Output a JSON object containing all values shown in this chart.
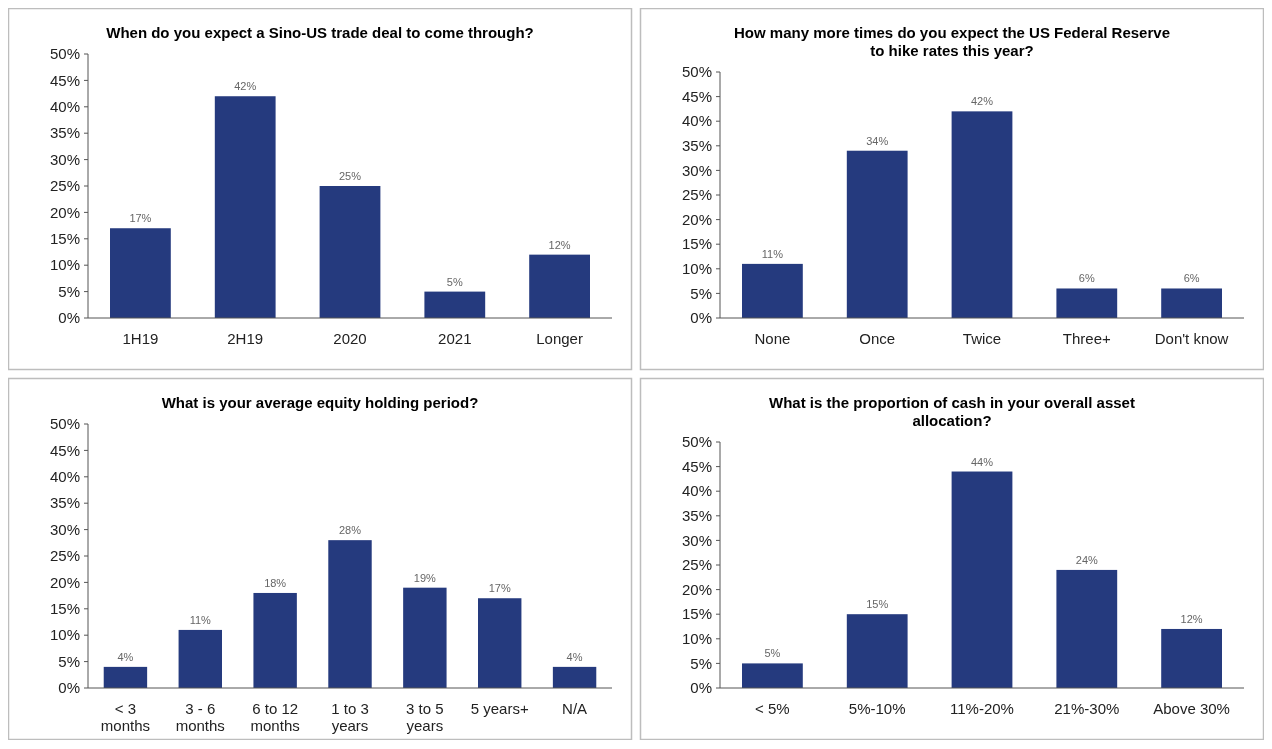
{
  "chart_data": [
    {
      "type": "bar",
      "title": "When do you expect a Sino-US trade deal to come through?",
      "categories": [
        "1H19",
        "2H19",
        "2020",
        "2021",
        "Longer"
      ],
      "values": [
        17,
        42,
        25,
        5,
        12
      ],
      "color": "#253a7e",
      "ylim": [
        0,
        50
      ],
      "yticks": [
        {
          "value": 0,
          "label": "0%"
        },
        {
          "value": 5,
          "label": "5%"
        },
        {
          "value": 10,
          "label": "10%"
        },
        {
          "value": 15,
          "label": "15%"
        },
        {
          "value": 20,
          "label": "20%"
        },
        {
          "value": 25,
          "label": "25%"
        },
        {
          "value": 30,
          "label": "30%"
        },
        {
          "value": 35,
          "label": "35%"
        },
        {
          "value": 40,
          "label": "40%"
        },
        {
          "value": 45,
          "label": "45%"
        },
        {
          "value": 50,
          "label": "50%"
        }
      ],
      "value_labels": [
        "17%",
        "42%",
        "25%",
        "5%",
        "12%"
      ]
    },
    {
      "type": "bar",
      "title": "How many more times do you expect the US Federal Reserve to hike rates this year?",
      "categories": [
        "None",
        "Once",
        "Twice",
        "Three+",
        "Don't know"
      ],
      "values": [
        11,
        34,
        42,
        6,
        6
      ],
      "color": "#253a7e",
      "ylim": [
        0,
        50
      ],
      "yticks": [
        {
          "value": 0,
          "label": "0%"
        },
        {
          "value": 5,
          "label": "5%"
        },
        {
          "value": 10,
          "label": "10%"
        },
        {
          "value": 15,
          "label": "15%"
        },
        {
          "value": 20,
          "label": "20%"
        },
        {
          "value": 25,
          "label": "25%"
        },
        {
          "value": 30,
          "label": "30%"
        },
        {
          "value": 35,
          "label": "35%"
        },
        {
          "value": 40,
          "label": "40%"
        },
        {
          "value": 45,
          "label": "45%"
        },
        {
          "value": 50,
          "label": "50%"
        }
      ],
      "value_labels": [
        "11%",
        "34%",
        "42%",
        "6%",
        "6%"
      ]
    },
    {
      "type": "bar",
      "title": "What is your average equity holding period?",
      "categories": [
        "< 3 months",
        "3 - 6 months",
        "6 to 12 months",
        "1 to 3 years",
        "3 to 5 years",
        "5 years+",
        "N/A"
      ],
      "values": [
        4,
        11,
        18,
        28,
        19,
        17,
        4
      ],
      "color": "#253a7e",
      "ylim": [
        0,
        50
      ],
      "yticks": [
        {
          "value": 0,
          "label": "0%"
        },
        {
          "value": 5,
          "label": "5%"
        },
        {
          "value": 10,
          "label": "10%"
        },
        {
          "value": 15,
          "label": "15%"
        },
        {
          "value": 20,
          "label": "20%"
        },
        {
          "value": 25,
          "label": "25%"
        },
        {
          "value": 30,
          "label": "30%"
        },
        {
          "value": 35,
          "label": "35%"
        },
        {
          "value": 40,
          "label": "40%"
        },
        {
          "value": 45,
          "label": "45%"
        },
        {
          "value": 50,
          "label": "50%"
        }
      ],
      "value_labels": [
        "4%",
        "11%",
        "18%",
        "28%",
        "19%",
        "17%",
        "4%"
      ]
    },
    {
      "type": "bar",
      "title": "What is the proportion of cash in your overall asset allocation?",
      "categories": [
        "< 5%",
        "5%-10%",
        "11%-20%",
        "21%-30%",
        "Above 30%"
      ],
      "values": [
        5,
        15,
        44,
        24,
        12
      ],
      "color": "#253a7e",
      "ylim": [
        0,
        50
      ],
      "yticks": [
        {
          "value": 0,
          "label": "0%"
        },
        {
          "value": 5,
          "label": "5%"
        },
        {
          "value": 10,
          "label": "10%"
        },
        {
          "value": 15,
          "label": "15%"
        },
        {
          "value": 20,
          "label": "20%"
        },
        {
          "value": 25,
          "label": "25%"
        },
        {
          "value": 30,
          "label": "30%"
        },
        {
          "value": 35,
          "label": "35%"
        },
        {
          "value": 40,
          "label": "40%"
        },
        {
          "value": 45,
          "label": "45%"
        },
        {
          "value": 50,
          "label": "50%"
        }
      ],
      "value_labels": [
        "5%",
        "15%",
        "44%",
        "24%",
        "12%"
      ]
    }
  ]
}
